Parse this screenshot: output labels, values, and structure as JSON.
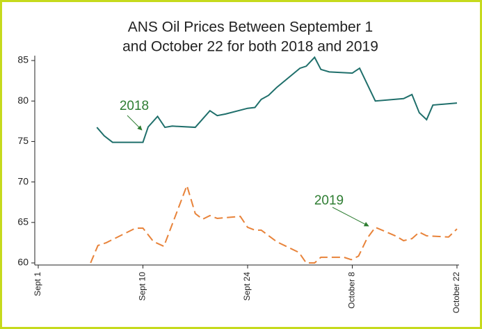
{
  "chart_data": {
    "type": "line",
    "title": [
      "ANS Oil Prices Between September 1",
      "and October 22 for both 2018 and 2019"
    ],
    "xlim": [
      0,
      40
    ],
    "xticks": [
      {
        "value": 0,
        "label": "Sept 1"
      },
      {
        "value": 10,
        "label": "Sept 10"
      },
      {
        "value": 20,
        "label": "Sept 24"
      },
      {
        "value": 30,
        "label": "October 8"
      },
      {
        "value": 40,
        "label": "October 22"
      }
    ],
    "ylim": [
      59.7,
      86
    ],
    "yticks": [
      60,
      65,
      70,
      75,
      80,
      85
    ],
    "grid": false,
    "series": [
      {
        "name": "2018",
        "color": "#1f6f6b",
        "dashed": false,
        "x": [
          5.6,
          6.3,
          7.1,
          10,
          10.5,
          11.4,
          12.1,
          12.8,
          15,
          16.4,
          17.1,
          17.9,
          20,
          20.7,
          21.3,
          22,
          22.8,
          25,
          25.6,
          26.4,
          27,
          27.8,
          30,
          30.7,
          32.2,
          34.9,
          35.7,
          36.4,
          37.1,
          37.7,
          40
        ],
        "values": [
          76.75,
          75.7,
          74.9,
          74.9,
          76.8,
          78.1,
          76.75,
          76.9,
          76.75,
          78.8,
          78.2,
          78.4,
          79.1,
          79.2,
          80.2,
          80.7,
          81.7,
          84.05,
          84.3,
          85.4,
          83.9,
          83.6,
          83.45,
          84.05,
          80,
          80.3,
          80.8,
          78.55,
          77.7,
          79.5,
          79.75
        ]
      },
      {
        "name": "2019",
        "color": "#e8833a",
        "dashed": true,
        "x": [
          5,
          5.7,
          6.5,
          9.3,
          10,
          11,
          12,
          14.2,
          15,
          15.7,
          16.4,
          17.1,
          19.3,
          20,
          20.7,
          21.3,
          22.8,
          24.9,
          25.6,
          26.4,
          27,
          29.2,
          29.9,
          30.6,
          31.4,
          32.2,
          34.2,
          34.9,
          35.7,
          36.4,
          37.1,
          39.2,
          40
        ],
        "values": [
          60,
          62.15,
          62.5,
          64.3,
          64.3,
          62.65,
          62.05,
          69.55,
          66.1,
          65.4,
          65.85,
          65.5,
          65.75,
          64.4,
          64.05,
          64.05,
          62.6,
          61.3,
          60,
          60,
          60.7,
          60.7,
          60.4,
          60.85,
          63,
          64.4,
          63.3,
          62.75,
          63,
          63.8,
          63.35,
          63.2,
          64.2
        ]
      }
    ]
  }
}
